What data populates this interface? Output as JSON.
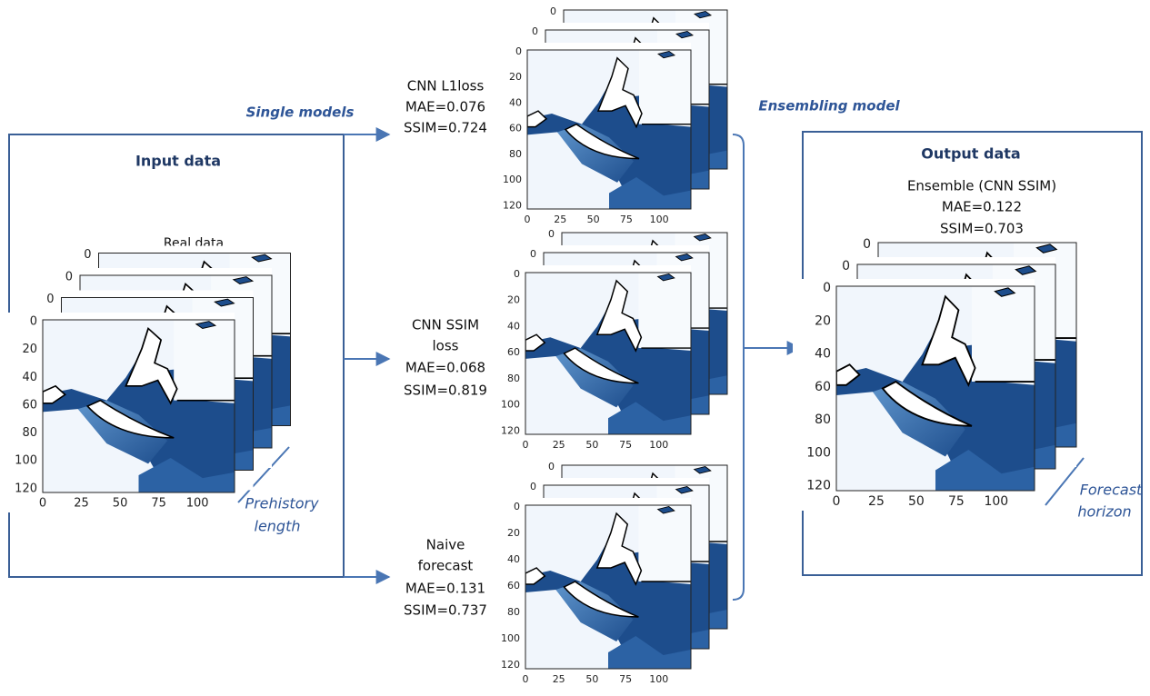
{
  "single_models_label": "Single models",
  "ensembling_model_label": "Ensembling model",
  "input": {
    "title": "Input data",
    "image_title": "Real data",
    "prehistory": [
      "Prehistory",
      "length"
    ]
  },
  "models": [
    {
      "label": [
        "CNN L1loss"
      ],
      "mae": "MAE=0.076",
      "ssim": "SSIM=0.724"
    },
    {
      "label": [
        "CNN SSIM",
        "loss"
      ],
      "mae": "MAE=0.068",
      "ssim": "SSIM=0.819"
    },
    {
      "label": [
        "Naive",
        "forecast"
      ],
      "mae": "MAE=0.131",
      "ssim": "SSIM=0.737"
    }
  ],
  "output": {
    "title": "Output data",
    "label": "Ensemble (CNN SSIM)",
    "mae": "MAE=0.122",
    "ssim": "SSIM=0.703",
    "horizon": [
      "Forecast",
      "horizon"
    ]
  },
  "plot_axes": {
    "y_ticks": [
      0,
      20,
      40,
      60,
      80,
      100,
      120
    ],
    "x_ticks": [
      0,
      25,
      50,
      75,
      100
    ]
  }
}
